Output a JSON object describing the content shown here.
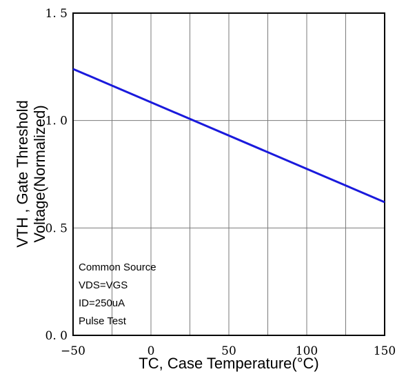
{
  "chart_data": {
    "type": "line",
    "title": "",
    "xlabel": "TC, Case Temperature(°C)",
    "ylabel_line1": "VTH , Gate Threshold",
    "ylabel_line2": "Voltage(Normalized)",
    "xlim": [
      -50,
      150
    ],
    "ylim": [
      0.0,
      1.5
    ],
    "x_ticks": [
      -50,
      0,
      50,
      100,
      150
    ],
    "x_tick_labels": [
      "−50",
      "0",
      "50",
      "100",
      "150"
    ],
    "y_ticks": [
      0.0,
      0.5,
      1.0,
      1.5
    ],
    "y_tick_labels": [
      "0. 0",
      "0. 5",
      "1. 0",
      "1. 5"
    ],
    "x_gridlines": [
      -25,
      0,
      25,
      50,
      75,
      100,
      125
    ],
    "y_gridlines": [
      0.5,
      1.0
    ],
    "grid": true,
    "series": [
      {
        "x": [
          -50,
          150
        ],
        "y": [
          1.24,
          0.62
        ],
        "color": "#1a1adc"
      }
    ],
    "annotations": [
      "Common Source",
      "VDS=VGS",
      "ID=250uA",
      "Pulse Test"
    ]
  }
}
